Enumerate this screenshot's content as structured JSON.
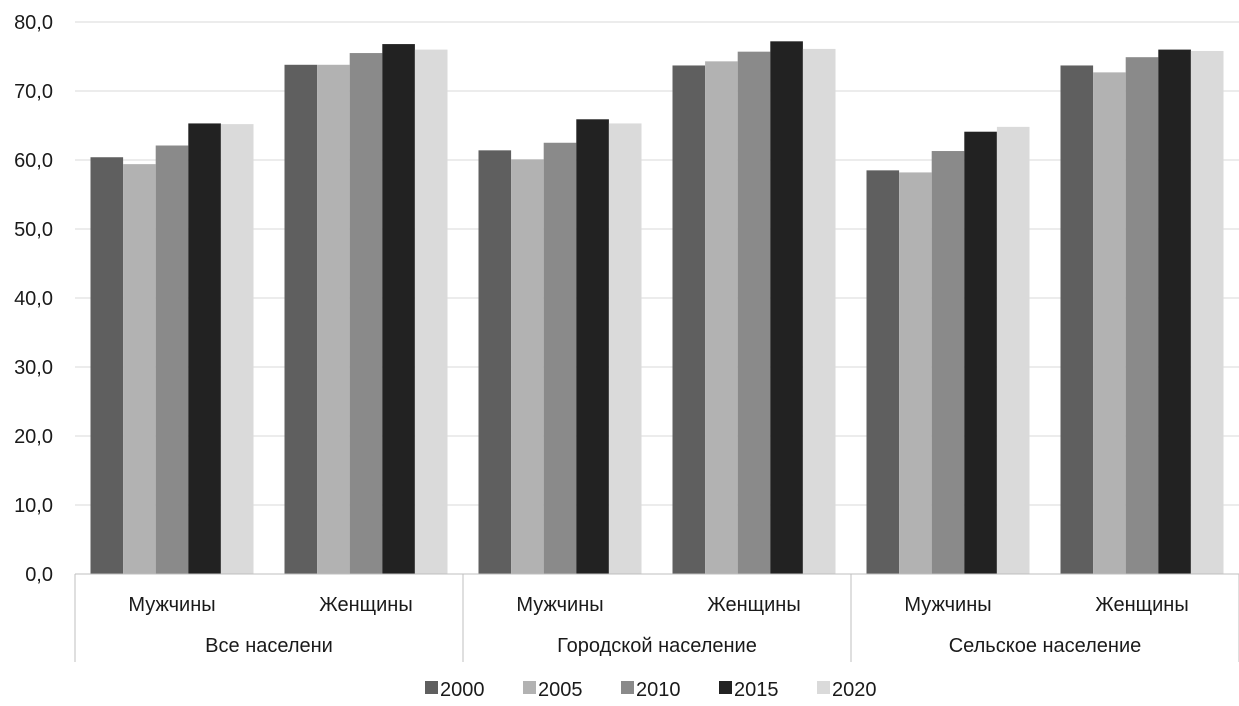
{
  "chart_data": {
    "type": "bar",
    "title": "",
    "xlabel": "",
    "ylabel": "",
    "ylim": [
      0,
      80
    ],
    "y_ticks": [
      "0,0",
      "10,0",
      "20,0",
      "30,0",
      "40,0",
      "50,0",
      "60,0",
      "70,0",
      "80,0"
    ],
    "groups": [
      {
        "label": "Все населени",
        "categories": [
          "Мужчины",
          "Женщины"
        ]
      },
      {
        "label": "Городской население",
        "categories": [
          "Мужчины",
          "Женщины"
        ]
      },
      {
        "label": "Сельское население",
        "categories": [
          "Мужчины",
          "Женщины"
        ]
      }
    ],
    "series": [
      {
        "name": "2000",
        "color": "#5f5f5f",
        "values": [
          60.4,
          73.8,
          61.4,
          73.7,
          58.5,
          73.7
        ]
      },
      {
        "name": "2005",
        "color": "#b2b2b2",
        "values": [
          59.4,
          73.8,
          60.1,
          74.3,
          58.2,
          72.7
        ]
      },
      {
        "name": "2010",
        "color": "#8a8a8a",
        "values": [
          62.1,
          75.5,
          62.5,
          75.7,
          61.3,
          74.9
        ]
      },
      {
        "name": "2015",
        "color": "#222222",
        "values": [
          65.3,
          76.8,
          65.9,
          77.2,
          64.1,
          76.0
        ]
      },
      {
        "name": "2020",
        "color": "#dadada",
        "values": [
          65.2,
          76.0,
          65.3,
          76.1,
          64.8,
          75.8
        ]
      }
    ],
    "grid": true,
    "legend_position": "bottom"
  }
}
